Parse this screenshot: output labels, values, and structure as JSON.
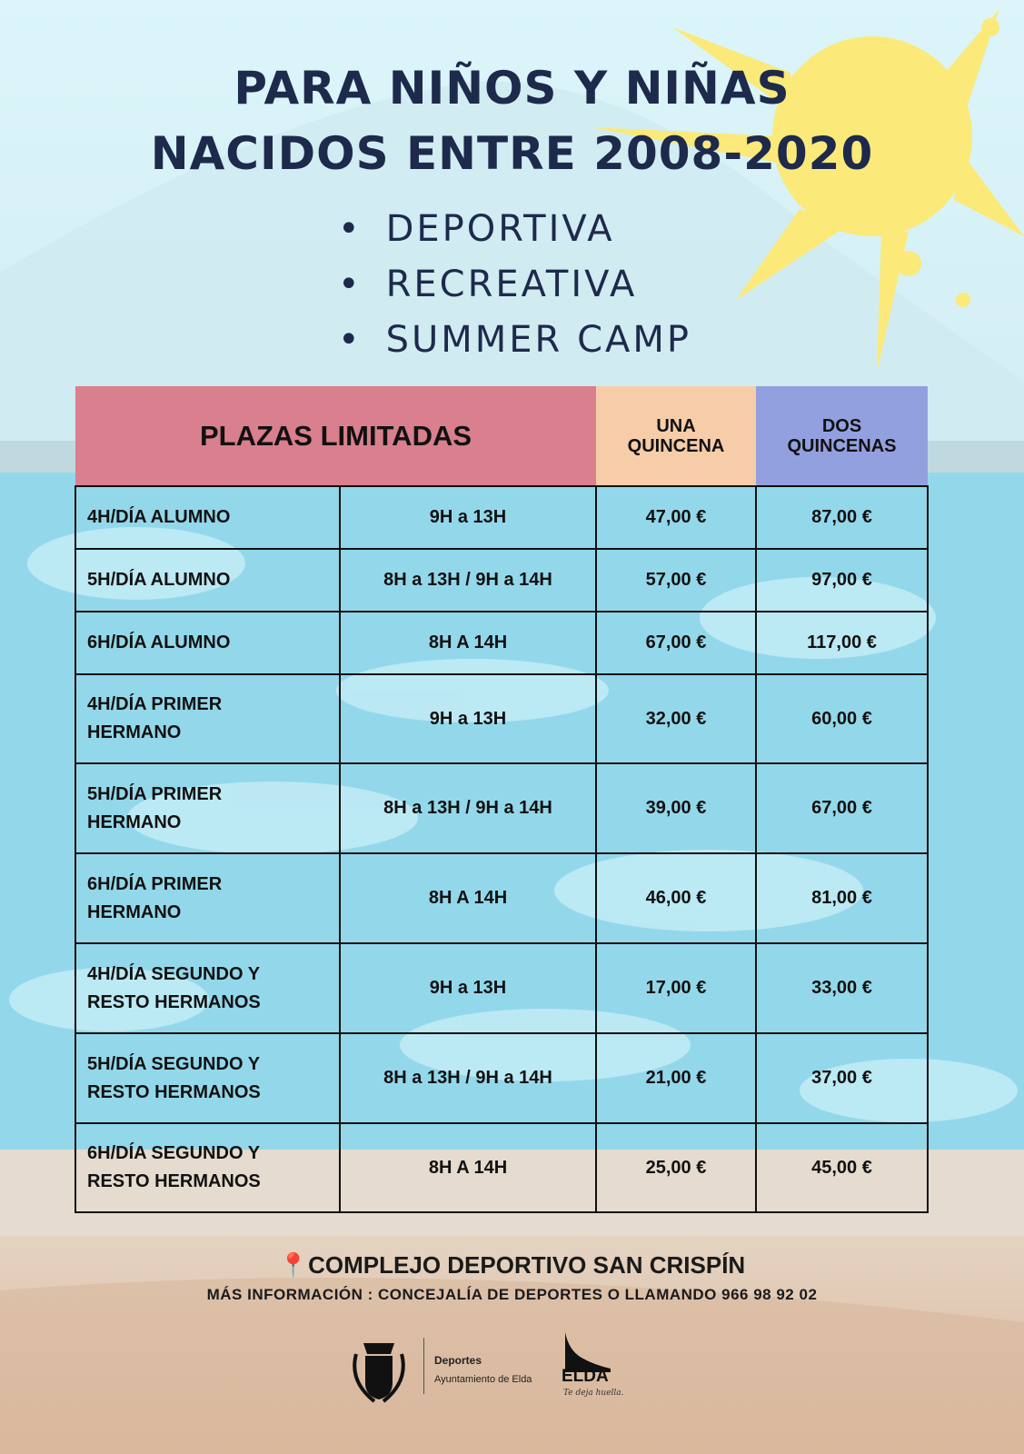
{
  "title": {
    "line1": "PARA NIÑOS Y NIÑAS",
    "line2": "NACIDOS  ENTRE 2008-2020"
  },
  "activities": [
    "DEPORTIVA",
    "RECREATIVA",
    "SUMMER CAMP"
  ],
  "table": {
    "headers": [
      "PLAZAS LIMITADAS",
      "UNA",
      "QUINCENA",
      "DOS",
      "QUINCENAS"
    ],
    "header_colors": {
      "plazas": "#d97f8d",
      "una": "#f7cda9",
      "dos": "#93a0e0"
    },
    "rows": [
      {
        "type1": "4H/DÍA ALUMNO",
        "type2": "",
        "hours": "9H a 13H",
        "una": "47,00 €",
        "dos": "87,00 €"
      },
      {
        "type1": "5H/DÍA ALUMNO",
        "type2": "",
        "hours": "8H a 13H / 9H a 14H",
        "una": "57,00 €",
        "dos": "97,00 €"
      },
      {
        "type1": "6H/DÍA ALUMNO",
        "type2": "",
        "hours": "8H A 14H",
        "una": "67,00 €",
        "dos": "117,00 €"
      },
      {
        "type1": "4H/DÍA PRIMER",
        "type2": "HERMANO",
        "hours": "9H a 13H",
        "una": "32,00 €",
        "dos": "60,00 €"
      },
      {
        "type1": "5H/DÍA PRIMER",
        "type2": "HERMANO",
        "hours": "8H a 13H / 9H a 14H",
        "una": "39,00 €",
        "dos": "67,00 €"
      },
      {
        "type1": "6H/DÍA PRIMER",
        "type2": "HERMANO",
        "hours": "8H A 14H",
        "una": "46,00 €",
        "dos": "81,00 €"
      },
      {
        "type1": "4H/DÍA SEGUNDO Y",
        "type2": "RESTO HERMANOS",
        "hours": "9H a 13H",
        "una": "17,00 €",
        "dos": "33,00 €"
      },
      {
        "type1": "5H/DÍA SEGUNDO Y",
        "type2": "RESTO HERMANOS",
        "hours": "8H a 13H / 9H a 14H",
        "una": "21,00 €",
        "dos": "37,00 €"
      },
      {
        "type1": "6H/DÍA SEGUNDO Y",
        "type2": "RESTO HERMANOS",
        "hours": "8H A 14H",
        "una": "25,00 €",
        "dos": "45,00 €"
      }
    ]
  },
  "footer": {
    "location_icon": "map-pin-icon",
    "location": "COMPLEJO DEPORTIVO SAN CRISPÍN",
    "info": "MÁS INFORMACIÓN : CONCEJALÍA DE DEPORTES O LLAMANDO 966 98 92 02"
  },
  "logos": {
    "dept": "Deportes",
    "org": "Ayuntamiento de Elda",
    "brand": "ELDA",
    "slogan": "Te deja huella."
  }
}
